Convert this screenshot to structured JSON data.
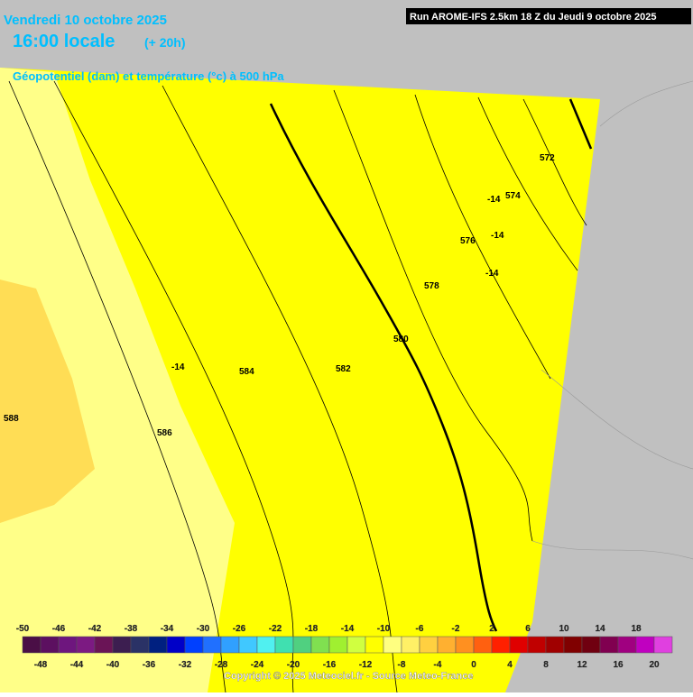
{
  "header": {
    "date": "Vendredi 10 octobre 2025",
    "time": "16:00 locale",
    "lead": "(+ 20h)",
    "parameter": "Géopotentiel (dam) et température (°c) à 500 hPa",
    "run": "Run AROME-IFS 2.5km 18 Z du Jeudi 9 octobre 2025"
  },
  "map": {
    "contour_labels": [
      "572",
      "574",
      "576",
      "578",
      "580",
      "582",
      "584",
      "586",
      "588",
      "-14",
      "-14",
      "-14",
      "-14"
    ]
  },
  "colorbar": {
    "ticks": [
      -50,
      -48,
      -46,
      -44,
      -42,
      -40,
      -38,
      -36,
      -34,
      -32,
      -30,
      -28,
      -26,
      -24,
      -22,
      -20,
      -18,
      -16,
      -14,
      -12,
      -10,
      -8,
      -6,
      -4,
      -2,
      0,
      2,
      4,
      6,
      8,
      10,
      12,
      14,
      16,
      18,
      20
    ],
    "colors": [
      "#4a0f46",
      "#5c1060",
      "#6e167e",
      "#7c1a82",
      "#6a1456",
      "#3c1e50",
      "#2a3266",
      "#002080",
      "#0000c8",
      "#0040ff",
      "#2070ff",
      "#30a0ff",
      "#40c8ff",
      "#50f0f0",
      "#40e0b0",
      "#50d080",
      "#80e050",
      "#a0f030",
      "#d0ff40",
      "#ffff00",
      "#ffff80",
      "#fff066",
      "#ffd040",
      "#ffb030",
      "#ff9020",
      "#ff6010",
      "#ff2000",
      "#e00000",
      "#c00000",
      "#a00000",
      "#800000",
      "#700010",
      "#800050",
      "#a00080",
      "#c000c0",
      "#e040e0",
      "#ff80ff",
      "#ffa0ff"
    ]
  },
  "footer": {
    "copyright": "Copyright © 2025 Meteociel.fr - Source Meteo-France"
  }
}
